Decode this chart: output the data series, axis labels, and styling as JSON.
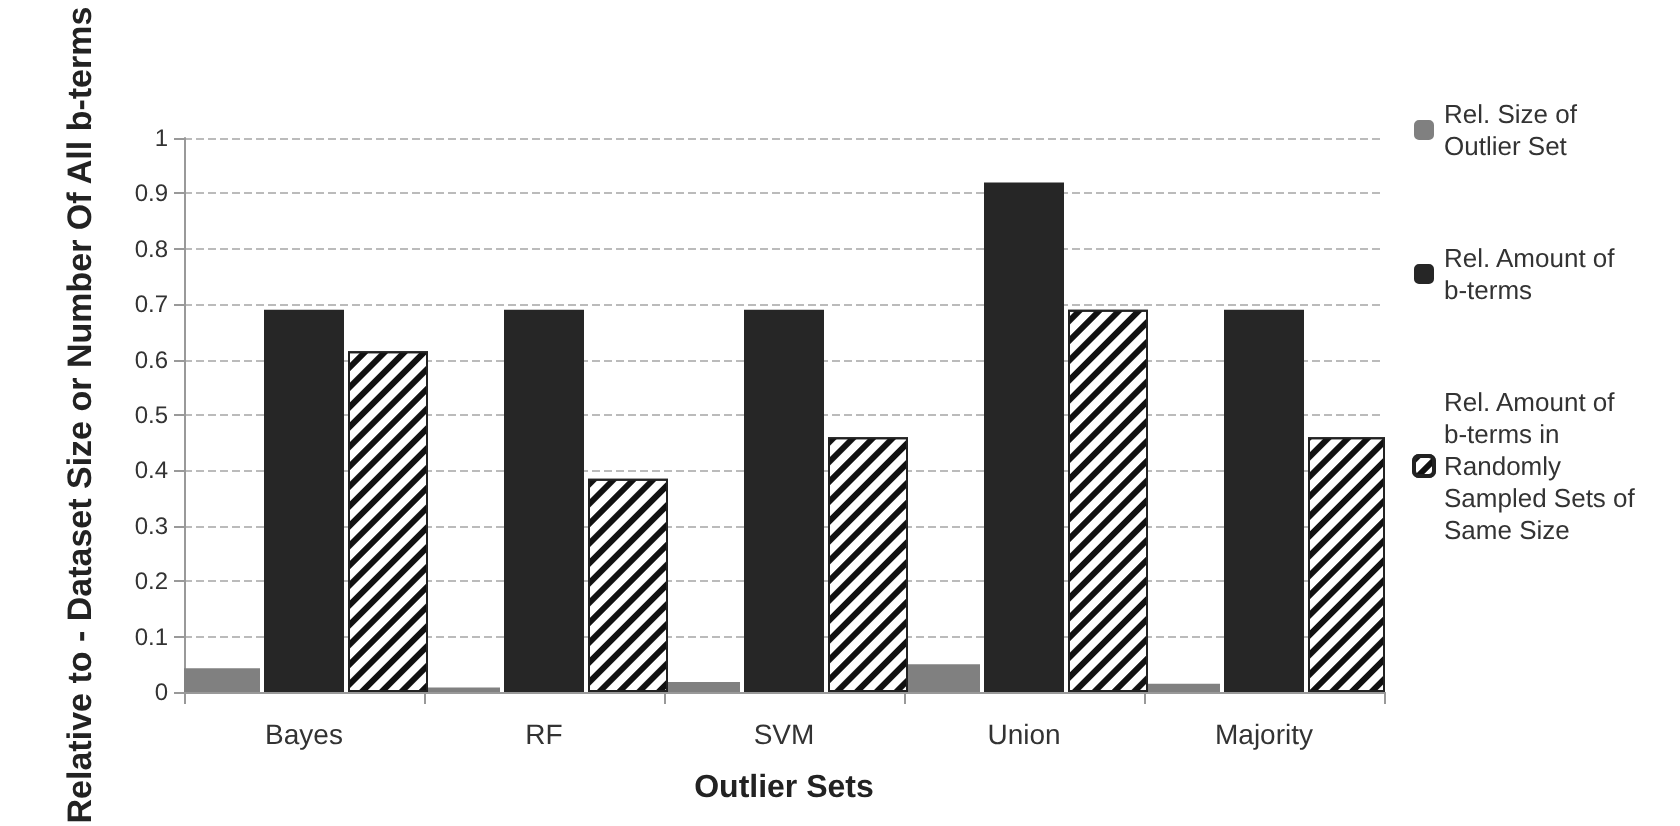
{
  "chart_data": {
    "type": "bar",
    "xlabel": "Outlier Sets",
    "ylabel": "Relative to - Dataset Size or Number Of All b-terms",
    "categories": [
      "Bayes",
      "RF",
      "SVM",
      "Union",
      "Majority"
    ],
    "series": [
      {
        "name": "Rel. Size of Outlier Set",
        "color": "#808080",
        "values": [
          0.043,
          0.008,
          0.018,
          0.05,
          0.015
        ]
      },
      {
        "name": "Rel. Amount of b-terms",
        "color": "#262626",
        "values": [
          0.69,
          0.69,
          0.69,
          0.92,
          0.69
        ]
      },
      {
        "name": "Rel. Amount of b-terms in Randomly Sampled Sets of Same Size",
        "color": "#ffffff",
        "values": [
          0.615,
          0.385,
          0.46,
          0.69,
          0.46
        ]
      }
    ],
    "ylim": [
      0,
      1
    ],
    "yticks": [
      0,
      0.1,
      0.2,
      0.3,
      0.4,
      0.5,
      0.6,
      0.7,
      0.8,
      0.9,
      1
    ],
    "grid": "y",
    "legend": "right"
  }
}
